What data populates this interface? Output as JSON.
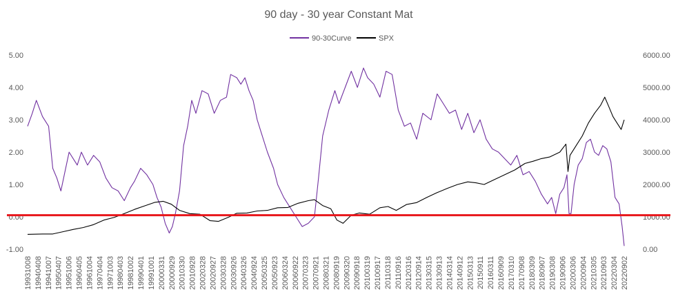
{
  "chart_data": {
    "type": "line",
    "title": "90 day - 30 year Constant Mat",
    "legend": {
      "placement": "top-center",
      "entries": [
        "90-30Curve",
        "SPX"
      ]
    },
    "y_left": {
      "min": -1,
      "max": 5,
      "ticks": [
        "-1.00",
        "0.00",
        "1.00",
        "2.00",
        "3.00",
        "4.00",
        "5.00"
      ]
    },
    "y_right": {
      "min": 0,
      "max": 6000,
      "ticks": [
        "0.00",
        "1000.00",
        "2000.00",
        "3000.00",
        "4000.00",
        "5000.00",
        "6000.00"
      ]
    },
    "x_ticks": [
      "19931008",
      "19940408",
      "19941007",
      "19950407",
      "19951006",
      "19960405",
      "19961004",
      "19970404",
      "19971003",
      "19980403",
      "19981002",
      "19990401",
      "19991001",
      "20000331",
      "20000929",
      "20010330",
      "20010928",
      "20020328",
      "20020927",
      "20030328",
      "20030926",
      "20040326",
      "20040924",
      "20050325",
      "20050923",
      "20060324",
      "20060922",
      "20070323",
      "20070921",
      "20080321",
      "20080919",
      "20090320",
      "20090918",
      "20100319",
      "20100917",
      "20110318",
      "20110916",
      "20120316",
      "20120914",
      "20130315",
      "20130913",
      "20140314",
      "20140912",
      "20150313",
      "20150911",
      "20160311",
      "20160909",
      "20170310",
      "20170908",
      "20180309",
      "20180907",
      "20190308",
      "20190906",
      "20200306",
      "20200904",
      "20210305",
      "20210903",
      "20220304",
      "20220902"
    ],
    "threshold": {
      "value": 0.05,
      "axis": "left",
      "color": "#e8161b"
    },
    "series": [
      {
        "name": "90-30Curve",
        "axis": "left",
        "color": "#7030a0",
        "x": [
          1993.77,
          1994.0,
          1994.2,
          1994.5,
          1994.8,
          1995.0,
          1995.2,
          1995.4,
          1995.6,
          1995.8,
          1996.0,
          1996.2,
          1996.4,
          1996.7,
          1997.0,
          1997.3,
          1997.6,
          1997.9,
          1998.2,
          1998.5,
          1998.8,
          1999.0,
          1999.3,
          1999.6,
          1999.9,
          2000.1,
          2000.3,
          2000.5,
          2000.7,
          2000.85,
          2001.0,
          2001.2,
          2001.4,
          2001.6,
          2001.8,
          2002.0,
          2002.3,
          2002.6,
          2002.9,
          2003.2,
          2003.5,
          2003.7,
          2004.0,
          2004.2,
          2004.4,
          2004.6,
          2004.8,
          2005.0,
          2005.2,
          2005.5,
          2005.8,
          2006.0,
          2006.3,
          2006.6,
          2006.9,
          2007.2,
          2007.5,
          2007.8,
          2008.0,
          2008.2,
          2008.5,
          2008.8,
          2009.0,
          2009.3,
          2009.6,
          2009.9,
          2010.2,
          2010.4,
          2010.7,
          2011.0,
          2011.3,
          2011.6,
          2011.9,
          2012.2,
          2012.5,
          2012.8,
          2013.1,
          2013.5,
          2013.8,
          2014.1,
          2014.4,
          2014.7,
          2015.0,
          2015.3,
          2015.6,
          2015.9,
          2016.2,
          2016.5,
          2016.8,
          2017.1,
          2017.4,
          2017.7,
          2018.0,
          2018.3,
          2018.6,
          2018.9,
          2019.2,
          2019.4,
          2019.6,
          2019.8,
          2020.0,
          2020.15,
          2020.25,
          2020.35,
          2020.5,
          2020.7,
          2020.9,
          2021.1,
          2021.3,
          2021.5,
          2021.7,
          2021.9,
          2022.1,
          2022.3,
          2022.5,
          2022.7,
          2022.85,
          2022.95
        ],
        "values": [
          2.8,
          3.2,
          3.6,
          3.1,
          2.8,
          1.5,
          1.2,
          0.8,
          1.4,
          2.0,
          1.8,
          1.6,
          2.0,
          1.6,
          1.9,
          1.7,
          1.2,
          0.9,
          0.8,
          0.5,
          0.9,
          1.1,
          1.5,
          1.3,
          1.0,
          0.6,
          0.3,
          -0.2,
          -0.5,
          -0.3,
          0.1,
          0.8,
          2.2,
          2.8,
          3.6,
          3.2,
          3.9,
          3.8,
          3.2,
          3.6,
          3.7,
          4.4,
          4.3,
          4.1,
          4.3,
          3.9,
          3.6,
          3.0,
          2.6,
          2.0,
          1.5,
          1.0,
          0.6,
          0.3,
          0.0,
          -0.3,
          -0.2,
          0.0,
          1.2,
          2.5,
          3.3,
          3.9,
          3.5,
          4.0,
          4.5,
          4.0,
          4.6,
          4.3,
          4.1,
          3.7,
          4.5,
          4.4,
          3.3,
          2.8,
          2.9,
          2.4,
          3.2,
          3.0,
          3.8,
          3.5,
          3.2,
          3.3,
          2.7,
          3.2,
          2.6,
          3.0,
          2.4,
          2.1,
          2.0,
          1.8,
          1.6,
          1.9,
          1.3,
          1.4,
          1.1,
          0.7,
          0.4,
          0.6,
          0.1,
          0.7,
          0.9,
          1.3,
          0.1,
          0.1,
          1.0,
          1.6,
          1.8,
          2.3,
          2.4,
          2.0,
          1.9,
          2.2,
          2.1,
          1.7,
          0.6,
          0.4,
          -0.3,
          -0.9
        ]
      },
      {
        "name": "SPX",
        "axis": "right",
        "color": "#000000",
        "x": [
          1993.77,
          1994.5,
          1995.0,
          1995.5,
          1996.0,
          1996.5,
          1997.0,
          1997.5,
          1998.0,
          1998.5,
          1999.0,
          1999.5,
          2000.0,
          2000.4,
          2000.8,
          2001.2,
          2001.7,
          2002.2,
          2002.7,
          2003.1,
          2003.6,
          2004.0,
          2004.5,
          2005.0,
          2005.5,
          2006.0,
          2006.5,
          2007.0,
          2007.5,
          2007.8,
          2008.2,
          2008.6,
          2008.9,
          2009.2,
          2009.6,
          2010.0,
          2010.5,
          2011.0,
          2011.4,
          2011.8,
          2012.3,
          2012.8,
          2013.3,
          2013.8,
          2014.3,
          2014.8,
          2015.3,
          2015.7,
          2016.1,
          2016.6,
          2017.1,
          2017.6,
          2018.1,
          2018.5,
          2018.9,
          2019.3,
          2019.8,
          2020.1,
          2020.2,
          2020.3,
          2020.6,
          2020.9,
          2021.2,
          2021.5,
          2021.8,
          2022.0,
          2022.2,
          2022.4,
          2022.6,
          2022.8,
          2022.95
        ],
        "values": [
          460,
          470,
          470,
          540,
          610,
          670,
          760,
          900,
          980,
          1100,
          1230,
          1340,
          1450,
          1480,
          1390,
          1200,
          1100,
          1080,
          880,
          860,
          990,
          1110,
          1120,
          1180,
          1200,
          1280,
          1290,
          1420,
          1500,
          1530,
          1350,
          1250,
          900,
          800,
          1050,
          1120,
          1080,
          1280,
          1320,
          1200,
          1380,
          1440,
          1600,
          1750,
          1880,
          2000,
          2080,
          2050,
          2000,
          2150,
          2300,
          2450,
          2650,
          2720,
          2800,
          2850,
          3000,
          3250,
          2400,
          2900,
          3200,
          3500,
          3900,
          4200,
          4450,
          4700,
          4400,
          4100,
          3900,
          3700,
          4000
        ]
      }
    ]
  }
}
